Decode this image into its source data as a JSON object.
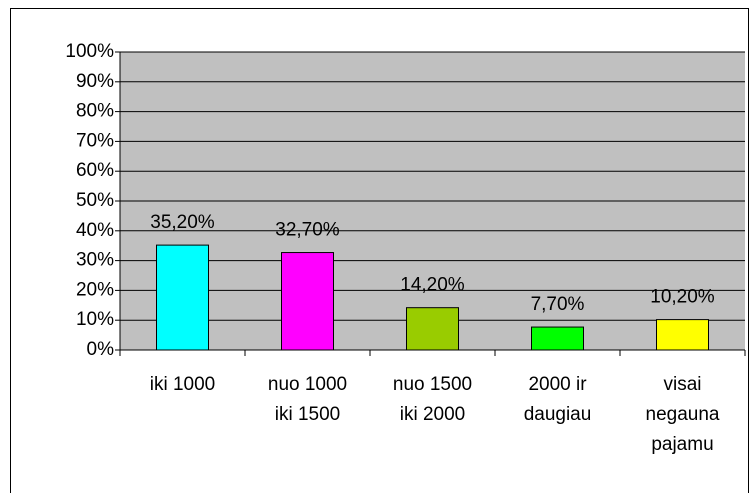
{
  "chart_data": {
    "type": "bar",
    "categories": [
      "iki 1000",
      "nuo 1000\niki 1500",
      "nuo 1500\niki 2000",
      "2000 ir\ndaugiau",
      "visai\nnegauna\npajamu"
    ],
    "values": [
      35.2,
      32.7,
      14.2,
      7.7,
      10.2
    ],
    "value_labels": [
      "35,20%",
      "32,70%",
      "14,20%",
      "7,70%",
      "10,20%"
    ],
    "colors": [
      "#00ffff",
      "#ff00ff",
      "#99cc00",
      "#00ff00",
      "#ffff00"
    ],
    "ylim": [
      0,
      100
    ],
    "yticks": [
      {
        "value": 0,
        "label": "0%"
      },
      {
        "value": 10,
        "label": "10%"
      },
      {
        "value": 20,
        "label": "20%"
      },
      {
        "value": 30,
        "label": "30%"
      },
      {
        "value": 40,
        "label": "40%"
      },
      {
        "value": 50,
        "label": "50%"
      },
      {
        "value": 60,
        "label": "60%"
      },
      {
        "value": 70,
        "label": "70%"
      },
      {
        "value": 80,
        "label": "80%"
      },
      {
        "value": 90,
        "label": "90%"
      },
      {
        "value": 100,
        "label": "100%"
      }
    ],
    "grid": true
  }
}
